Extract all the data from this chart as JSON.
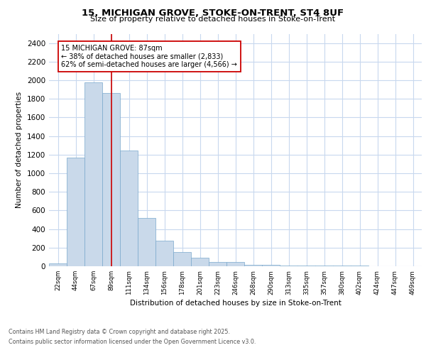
{
  "title_line1": "15, MICHIGAN GROVE, STOKE-ON-TRENT, ST4 8UF",
  "title_line2": "Size of property relative to detached houses in Stoke-on-Trent",
  "xlabel": "Distribution of detached houses by size in Stoke-on-Trent",
  "ylabel": "Number of detached properties",
  "bar_labels": [
    "22sqm",
    "44sqm",
    "67sqm",
    "89sqm",
    "111sqm",
    "134sqm",
    "156sqm",
    "178sqm",
    "201sqm",
    "223sqm",
    "246sqm",
    "268sqm",
    "290sqm",
    "313sqm",
    "335sqm",
    "357sqm",
    "380sqm",
    "402sqm",
    "424sqm",
    "447sqm",
    "469sqm"
  ],
  "bar_values": [
    30,
    1170,
    1980,
    1860,
    1245,
    520,
    275,
    150,
    90,
    45,
    45,
    18,
    18,
    8,
    5,
    4,
    4,
    4,
    2,
    2,
    2
  ],
  "bar_color": "#c9d9ea",
  "bar_edge_color": "#7aa8cc",
  "property_label": "15 MICHIGAN GROVE: 87sqm",
  "pct_smaller": "38%",
  "count_smaller": "2,833",
  "pct_larger_semi": "62%",
  "count_larger_semi": "4,566",
  "vline_color": "#cc0000",
  "annotation_box_color": "#cc0000",
  "ylim": [
    0,
    2500
  ],
  "yticks": [
    0,
    200,
    400,
    600,
    800,
    1000,
    1200,
    1400,
    1600,
    1800,
    2000,
    2200,
    2400
  ],
  "footer_line1": "Contains HM Land Registry data © Crown copyright and database right 2025.",
  "footer_line2": "Contains public sector information licensed under the Open Government Licence v3.0.",
  "plot_bg_color": "#ffffff",
  "grid_color": "#c8d8ee"
}
